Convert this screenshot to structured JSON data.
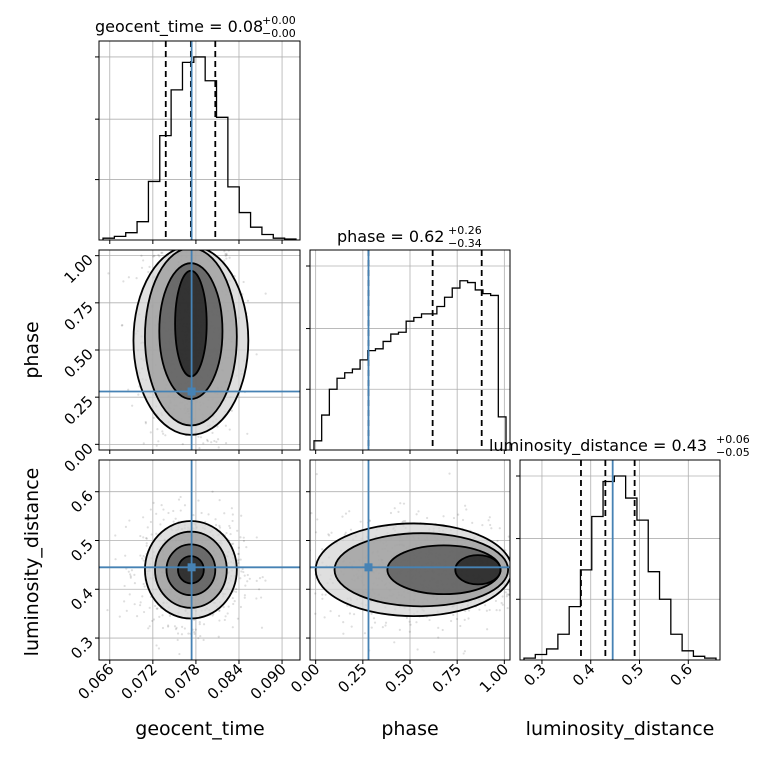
{
  "chart_data": {
    "type": "corner",
    "parameters": [
      {
        "name": "geocent_time",
        "axis_label": "geocent_time",
        "title_main": "geocent_time = 0.08",
        "title_plus": "+0.00",
        "title_minus": "−0.00",
        "range": [
          0.0645,
          0.0925
        ],
        "ticks": [
          0.066,
          0.072,
          0.078,
          0.084,
          0.09
        ],
        "tick_labels": [
          "0.066",
          "0.072",
          "0.078",
          "0.084",
          "0.090"
        ],
        "quantiles": [
          0.0738,
          0.0773,
          0.0807
        ],
        "truth": 0.0774,
        "histogram": [
          0.01,
          0.02,
          0.04,
          0.1,
          0.32,
          0.57,
          0.82,
          0.97,
          1.0,
          0.87,
          0.67,
          0.29,
          0.15,
          0.07,
          0.03,
          0.01,
          0.005
        ]
      },
      {
        "name": "phase",
        "axis_label": "phase",
        "title_main": "phase = 0.62",
        "title_plus": "+0.26",
        "title_minus": "−0.34",
        "range": [
          -0.03,
          1.03
        ],
        "ticks": [
          0.0,
          0.25,
          0.5,
          0.75,
          1.0
        ],
        "tick_labels": [
          "0.00",
          "0.25",
          "0.50",
          "0.75",
          "1.00"
        ],
        "quantiles": [
          0.28,
          0.62,
          0.88
        ],
        "truth": 0.28,
        "histogram": [
          0.05,
          0.19,
          0.33,
          0.39,
          0.42,
          0.44,
          0.49,
          0.54,
          0.55,
          0.59,
          0.63,
          0.64,
          0.7,
          0.72,
          0.74,
          0.74,
          0.78,
          0.83,
          0.88,
          0.92,
          0.91,
          0.87,
          0.85,
          0.84,
          0.18
        ]
      },
      {
        "name": "luminosity_distance",
        "axis_label": "luminosity_distance",
        "title_main": "luminosity_distance = 0.43",
        "title_plus": "+0.06",
        "title_minus": "−0.05",
        "range": [
          0.255,
          0.665
        ],
        "ticks": [
          0.3,
          0.4,
          0.5,
          0.6
        ],
        "tick_labels": [
          "0.3",
          "0.4",
          "0.5",
          "0.6"
        ],
        "quantiles": [
          0.38,
          0.43,
          0.49
        ],
        "truth": 0.445,
        "histogram": [
          0.01,
          0.03,
          0.06,
          0.14,
          0.29,
          0.49,
          0.78,
          0.97,
          1.0,
          0.88,
          0.76,
          0.48,
          0.33,
          0.14,
          0.05,
          0.02,
          0.01
        ]
      }
    ],
    "pairs": [
      {
        "x": "geocent_time",
        "y": "phase",
        "scatter_center": [
          0.0773,
          0.56
        ],
        "scatter_spread": [
          0.0033,
          0.3
        ],
        "contours": [
          {
            "center": [
              0.0773,
              0.64
            ],
            "half_width": [
              0.0022,
              0.28
            ]
          },
          {
            "center": [
              0.0773,
              0.6
            ],
            "half_width": [
              0.0044,
              0.36
            ]
          },
          {
            "center": [
              0.0773,
              0.57
            ],
            "half_width": [
              0.0064,
              0.47
            ]
          },
          {
            "center": [
              0.0773,
              0.55
            ],
            "half_width": [
              0.008,
              0.5
            ]
          }
        ]
      },
      {
        "x": "geocent_time",
        "y": "luminosity_distance",
        "scatter_center": [
          0.0773,
          0.44
        ],
        "scatter_spread": [
          0.0035,
          0.055
        ],
        "contours": [
          {
            "center": [
              0.0773,
              0.44
            ],
            "half_width": [
              0.0018,
              0.028
            ]
          },
          {
            "center": [
              0.0773,
              0.44
            ],
            "half_width": [
              0.0034,
              0.052
            ]
          },
          {
            "center": [
              0.0773,
              0.44
            ],
            "half_width": [
              0.005,
              0.078
            ]
          },
          {
            "center": [
              0.0773,
              0.44
            ],
            "half_width": [
              0.0064,
              0.1
            ]
          }
        ]
      },
      {
        "x": "phase",
        "y": "luminosity_distance",
        "scatter_center": [
          0.6,
          0.44
        ],
        "scatter_spread": [
          0.3,
          0.055
        ],
        "contours": [
          {
            "center": [
              0.86,
              0.44
            ],
            "half_width": [
              0.12,
              0.03
            ]
          },
          {
            "center": [
              0.68,
              0.44
            ],
            "half_width": [
              0.3,
              0.05
            ]
          },
          {
            "center": [
              0.56,
              0.44
            ],
            "half_width": [
              0.46,
              0.075
            ]
          },
          {
            "center": [
              0.52,
              0.44
            ],
            "half_width": [
              0.52,
              0.095
            ]
          }
        ]
      }
    ],
    "truth_color": "#4682b4",
    "grid": true
  }
}
